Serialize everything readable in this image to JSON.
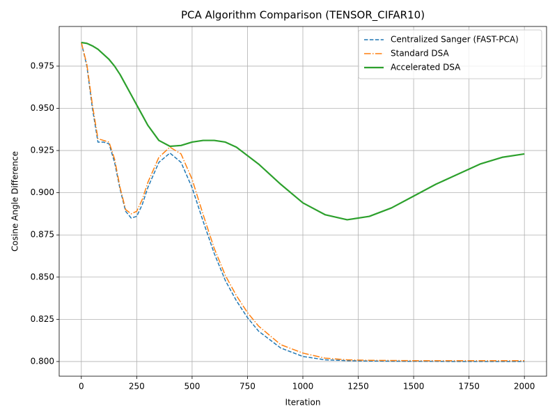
{
  "chart_data": {
    "type": "line",
    "title": "PCA Algorithm Comparison (TENSOR_CIFAR10)",
    "x_label": "Iteration",
    "y_label": "Cosine Angle Difference",
    "x": [
      0,
      25,
      50,
      75,
      100,
      125,
      150,
      175,
      200,
      225,
      250,
      275,
      300,
      350,
      400,
      450,
      500,
      550,
      600,
      650,
      700,
      750,
      800,
      900,
      1000,
      1100,
      1200,
      1300,
      1400,
      1500,
      1600,
      1700,
      1800,
      1900,
      2000
    ],
    "series": [
      {
        "name": "Centralized Sanger (FAST-PCA)",
        "color": "#1f77b4",
        "linestyle": "dashed",
        "linewidth": 1.5,
        "values": [
          0.989,
          0.975,
          0.95,
          0.93,
          0.93,
          0.929,
          0.918,
          0.902,
          0.889,
          0.885,
          0.886,
          0.893,
          0.903,
          0.918,
          0.9235,
          0.918,
          0.903,
          0.883,
          0.864,
          0.848,
          0.836,
          0.826,
          0.818,
          0.808,
          0.803,
          0.801,
          0.8005,
          0.8003,
          0.8002,
          0.8001,
          0.8001,
          0.8,
          0.8,
          0.8,
          0.8
        ]
      },
      {
        "name": "Standard DSA",
        "color": "#ff7f0e",
        "linestyle": "dashdot",
        "linewidth": 1.5,
        "values": [
          0.989,
          0.976,
          0.952,
          0.932,
          0.931,
          0.93,
          0.92,
          0.903,
          0.89,
          0.8875,
          0.889,
          0.896,
          0.906,
          0.921,
          0.927,
          0.923,
          0.908,
          0.887,
          0.867,
          0.851,
          0.839,
          0.829,
          0.821,
          0.81,
          0.805,
          0.802,
          0.801,
          0.8007,
          0.8006,
          0.8005,
          0.8005,
          0.8005,
          0.8005,
          0.8005,
          0.8005
        ]
      },
      {
        "name": "Accelerated DSA",
        "color": "#2ca02c",
        "linestyle": "solid",
        "linewidth": 2.2,
        "values": [
          0.989,
          0.9885,
          0.987,
          0.985,
          0.982,
          0.979,
          0.975,
          0.97,
          0.964,
          0.958,
          0.952,
          0.946,
          0.94,
          0.931,
          0.9275,
          0.928,
          0.93,
          0.931,
          0.931,
          0.93,
          0.927,
          0.922,
          0.917,
          0.905,
          0.894,
          0.887,
          0.884,
          0.886,
          0.891,
          0.898,
          0.905,
          0.911,
          0.917,
          0.921,
          0.923
        ]
      }
    ],
    "xlim": [
      -100,
      2100
    ],
    "ylim": [
      0.7913,
      0.9985
    ],
    "xticks": [
      0,
      250,
      500,
      750,
      1000,
      1250,
      1500,
      1750,
      2000
    ],
    "yticks": [
      {
        "value": 0.8,
        "label": "0.800"
      },
      {
        "value": 0.825,
        "label": "0.825"
      },
      {
        "value": 0.85,
        "label": "0.850"
      },
      {
        "value": 0.875,
        "label": "0.875"
      },
      {
        "value": 0.9,
        "label": "0.900"
      },
      {
        "value": 0.925,
        "label": "0.925"
      },
      {
        "value": 0.95,
        "label": "0.950"
      },
      {
        "value": 0.975,
        "label": "0.975"
      }
    ],
    "grid": true,
    "legend": "upper-right"
  }
}
